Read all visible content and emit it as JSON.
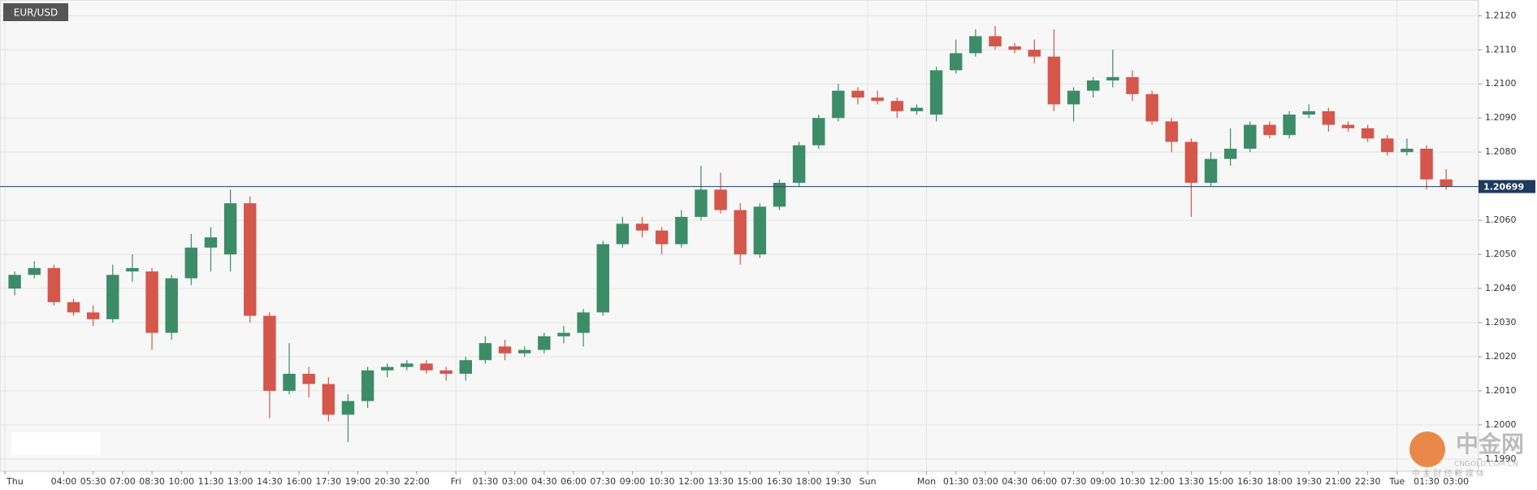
{
  "chart_data": {
    "type": "candlestick",
    "title": "EUR/USD",
    "open": [
      1.204,
      1.2044,
      1.2046,
      1.2036,
      1.2033,
      1.2031,
      1.2045,
      1.2045,
      1.2027,
      1.2043,
      1.2052,
      1.205,
      1.2065,
      1.2032,
      1.201,
      1.2015,
      1.2012,
      1.2003,
      1.2007,
      1.2016,
      1.2017,
      1.2018,
      1.2016,
      1.2015,
      1.2019,
      1.2023,
      1.2021,
      1.2022,
      1.2026,
      1.2027,
      1.2033,
      1.2053,
      1.2059,
      1.2057,
      1.2053,
      1.2061,
      1.2069,
      1.2063,
      1.205,
      1.2064,
      1.2071,
      1.2082,
      1.209,
      1.2098,
      1.2096,
      1.2095,
      1.2092,
      1.2091,
      1.2104,
      1.2109,
      1.2114,
      1.2111,
      1.211,
      1.2108,
      1.2094,
      1.2098,
      1.2101,
      1.2102,
      1.2097,
      1.2089,
      1.2083,
      1.2071,
      1.2078,
      1.2081,
      1.2088,
      1.2085,
      1.2091,
      1.2092,
      1.2088,
      1.2087,
      1.2084,
      1.208,
      1.2081,
      1.2072
    ],
    "high": [
      1.2045,
      1.2048,
      1.2047,
      1.2037,
      1.2035,
      1.2047,
      1.205,
      1.2046,
      1.2044,
      1.2056,
      1.2058,
      1.2069,
      1.2067,
      1.2033,
      1.2024,
      1.2017,
      1.2014,
      1.2009,
      1.2017,
      1.2018,
      1.2019,
      1.2019,
      1.2017,
      1.202,
      1.2026,
      1.2025,
      1.2023,
      1.2027,
      1.2029,
      1.2034,
      1.2054,
      1.2061,
      1.2061,
      1.2058,
      1.2063,
      1.2076,
      1.2074,
      1.2065,
      1.2065,
      1.2072,
      1.2083,
      1.2091,
      1.21,
      1.2099,
      1.2098,
      1.2096,
      1.2094,
      1.2105,
      1.2113,
      1.2116,
      1.2117,
      1.2112,
      1.2113,
      1.2116,
      1.2099,
      1.2102,
      1.211,
      1.2104,
      1.2098,
      1.209,
      1.2084,
      1.208,
      1.2087,
      1.2089,
      1.2089,
      1.2092,
      1.2094,
      1.2093,
      1.2089,
      1.2088,
      1.2085,
      1.2084,
      1.2082,
      1.2075
    ],
    "low": [
      1.2038,
      1.2043,
      1.2035,
      1.2032,
      1.2029,
      1.203,
      1.2042,
      1.2022,
      1.2025,
      1.2041,
      1.2045,
      1.2045,
      1.203,
      1.2002,
      1.2009,
      1.2008,
      1.2001,
      1.1995,
      1.2005,
      1.2014,
      1.2016,
      1.2015,
      1.2013,
      1.2013,
      1.2018,
      1.2019,
      1.202,
      1.2021,
      1.2024,
      1.2023,
      1.2032,
      1.2052,
      1.2055,
      1.205,
      1.2052,
      1.206,
      1.2062,
      1.2047,
      1.2049,
      1.2063,
      1.207,
      1.2081,
      1.2089,
      1.2094,
      1.2094,
      1.209,
      1.2091,
      1.2089,
      1.2103,
      1.2108,
      1.211,
      1.2109,
      1.2106,
      1.2092,
      1.2089,
      1.2096,
      1.2099,
      1.2095,
      1.2088,
      1.208,
      1.2061,
      1.207,
      1.2076,
      1.208,
      1.2084,
      1.2084,
      1.209,
      1.2086,
      1.2086,
      1.2083,
      1.2079,
      1.2079,
      1.2069,
      1.2069
    ],
    "close": [
      1.2044,
      1.2046,
      1.2036,
      1.2033,
      1.2031,
      1.2044,
      1.2046,
      1.2027,
      1.2043,
      1.2052,
      1.2055,
      1.2065,
      1.2032,
      1.201,
      1.2015,
      1.2012,
      1.2003,
      1.2007,
      1.2016,
      1.2017,
      1.2018,
      1.2016,
      1.2015,
      1.2019,
      1.2024,
      1.2021,
      1.2022,
      1.2026,
      1.2027,
      1.2033,
      1.2053,
      1.2059,
      1.2057,
      1.2053,
      1.2061,
      1.2069,
      1.2063,
      1.205,
      1.2064,
      1.2071,
      1.2082,
      1.209,
      1.2098,
      1.2096,
      1.2095,
      1.2092,
      1.2093,
      1.2104,
      1.2109,
      1.2114,
      1.2111,
      1.211,
      1.2108,
      1.2094,
      1.2098,
      1.2101,
      1.2102,
      1.2097,
      1.2089,
      1.2083,
      1.2071,
      1.2078,
      1.2081,
      1.2088,
      1.2085,
      1.2091,
      1.2092,
      1.2088,
      1.2087,
      1.2084,
      1.208,
      1.2081,
      1.2072,
      1.20699
    ],
    "up_color": "#3c8c68",
    "down_color": "#d5564b",
    "last_price": 1.20699,
    "xlim": [
      -0.25,
      75.15
    ],
    "xticks": [
      {
        "value": 0,
        "label": "Thu"
      },
      {
        "value": 3,
        "label": "04:00"
      },
      {
        "value": 4.5,
        "label": "05:30"
      },
      {
        "value": 6,
        "label": "07:00"
      },
      {
        "value": 7.5,
        "label": "08:30"
      },
      {
        "value": 9,
        "label": "10:00"
      },
      {
        "value": 10.5,
        "label": "11:30"
      },
      {
        "value": 12,
        "label": "13:00"
      },
      {
        "value": 13.5,
        "label": "14:30"
      },
      {
        "value": 15,
        "label": "16:00"
      },
      {
        "value": 16.5,
        "label": "17:30"
      },
      {
        "value": 18,
        "label": "19:00"
      },
      {
        "value": 19.5,
        "label": "20:30"
      },
      {
        "value": 21,
        "label": "22:00"
      },
      {
        "value": 23,
        "label": "Fri"
      },
      {
        "value": 24.5,
        "label": "01:30"
      },
      {
        "value": 26,
        "label": "03:00"
      },
      {
        "value": 27.5,
        "label": "04:30"
      },
      {
        "value": 29,
        "label": "06:00"
      },
      {
        "value": 30.5,
        "label": "07:30"
      },
      {
        "value": 32,
        "label": "09:00"
      },
      {
        "value": 33.5,
        "label": "10:30"
      },
      {
        "value": 35,
        "label": "12:00"
      },
      {
        "value": 36.5,
        "label": "13:30"
      },
      {
        "value": 38,
        "label": "15:00"
      },
      {
        "value": 39.5,
        "label": "16:30"
      },
      {
        "value": 41,
        "label": "18:00"
      },
      {
        "value": 42.5,
        "label": "19:30"
      },
      {
        "value": 44,
        "label": "Sun"
      },
      {
        "value": 47,
        "label": "Mon"
      },
      {
        "value": 48.5,
        "label": "01:30"
      },
      {
        "value": 50,
        "label": "03:00"
      },
      {
        "value": 51.5,
        "label": "04:30"
      },
      {
        "value": 53,
        "label": "06:00"
      },
      {
        "value": 54.5,
        "label": "07:30"
      },
      {
        "value": 56,
        "label": "09:00"
      },
      {
        "value": 57.5,
        "label": "10:30"
      },
      {
        "value": 59,
        "label": "12:00"
      },
      {
        "value": 60.5,
        "label": "13:30"
      },
      {
        "value": 62,
        "label": "15:00"
      },
      {
        "value": 63.5,
        "label": "16:30"
      },
      {
        "value": 65,
        "label": "18:00"
      },
      {
        "value": 66.5,
        "label": "19:30"
      },
      {
        "value": 68,
        "label": "21:00"
      },
      {
        "value": 69.5,
        "label": "22:30"
      },
      {
        "value": 71,
        "label": "Tue"
      },
      {
        "value": 72.5,
        "label": "01:30"
      },
      {
        "value": 74,
        "label": "03:00"
      }
    ],
    "ylim": [
      1.19864,
      1.21246
    ],
    "yticks": [
      {
        "value": 1.199,
        "label": "1.1990"
      },
      {
        "value": 1.2,
        "label": "1.2000"
      },
      {
        "value": 1.201,
        "label": "1.2010"
      },
      {
        "value": 1.202,
        "label": "1.2020"
      },
      {
        "value": 1.203,
        "label": "1.2030"
      },
      {
        "value": 1.204,
        "label": "1.2040"
      },
      {
        "value": 1.205,
        "label": "1.2050"
      },
      {
        "value": 1.206,
        "label": "1.2060"
      },
      {
        "value": 1.207,
        "label": "1.2070"
      },
      {
        "value": 1.208,
        "label": "1.2080"
      },
      {
        "value": 1.209,
        "label": "1.2090"
      },
      {
        "value": 1.21,
        "label": "1.2100"
      },
      {
        "value": 1.211,
        "label": "1.2110"
      },
      {
        "value": 1.212,
        "label": "1.2120"
      }
    ],
    "grid": true
  },
  "watermark": {
    "logo": "中金网",
    "domain": "CNGOLD.COM.CN",
    "slogan": "中 金 财 经 新 媒 体"
  }
}
